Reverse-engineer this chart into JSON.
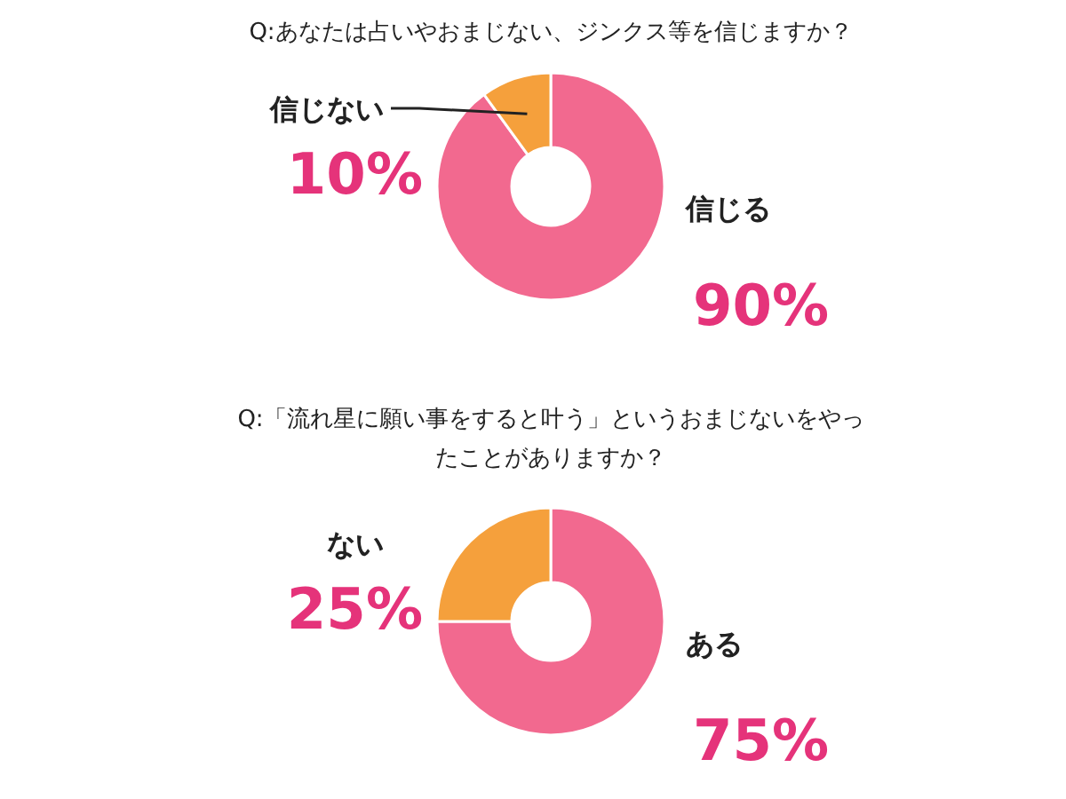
{
  "chart_data": [
    {
      "type": "donut",
      "title": "Q:あなたは占いやおまじない、ジンクス等を信じますか？",
      "categories": [
        "信じる",
        "信じない"
      ],
      "values": [
        90,
        10
      ],
      "colors": [
        "#f2698f",
        "#f5a03c"
      ],
      "value_labels": [
        "90%",
        "10%"
      ]
    },
    {
      "type": "donut",
      "title": "Q:「流れ星に願い事をすると叶う」というおまじないをやったことがありますか？",
      "categories": [
        "ある",
        "ない"
      ],
      "values": [
        75,
        25
      ],
      "colors": [
        "#f2698f",
        "#f5a03c"
      ],
      "value_labels": [
        "75%",
        "25%"
      ]
    }
  ]
}
